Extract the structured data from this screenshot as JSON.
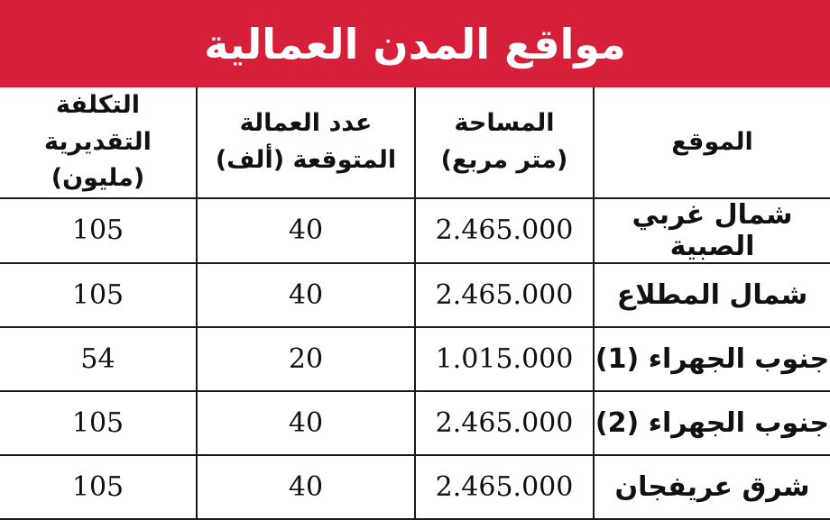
{
  "title": "مواقع المدن العمالية",
  "colors": {
    "title_background": "#d81f3a",
    "title_text": "#ffffff",
    "grid_lines": "#1a1a1a"
  },
  "headers": {
    "location": "الموقع",
    "area_line1": "المساحة",
    "area_line2": "(متر مربع)",
    "workers_line1": "عدد العمالة",
    "workers_line2": "المتوقعة (ألف)",
    "cost_line1": "التكلفة التقديرية",
    "cost_line2": "(مليون)"
  },
  "rows": [
    {
      "location": "شمال غربي الصبية",
      "area": "2.465.000",
      "workers": "40",
      "cost": "105"
    },
    {
      "location": "شمال المطلاع",
      "area": "2.465.000",
      "workers": "40",
      "cost": "105"
    },
    {
      "location": "جنوب الجهراء (1)",
      "area": "1.015.000",
      "workers": "20",
      "cost": "54"
    },
    {
      "location": "جنوب الجهراء (2)",
      "area": "2.465.000",
      "workers": "40",
      "cost": "105"
    },
    {
      "location": "شرق عريفجان",
      "area": "2.465.000",
      "workers": "40",
      "cost": "105"
    }
  ]
}
